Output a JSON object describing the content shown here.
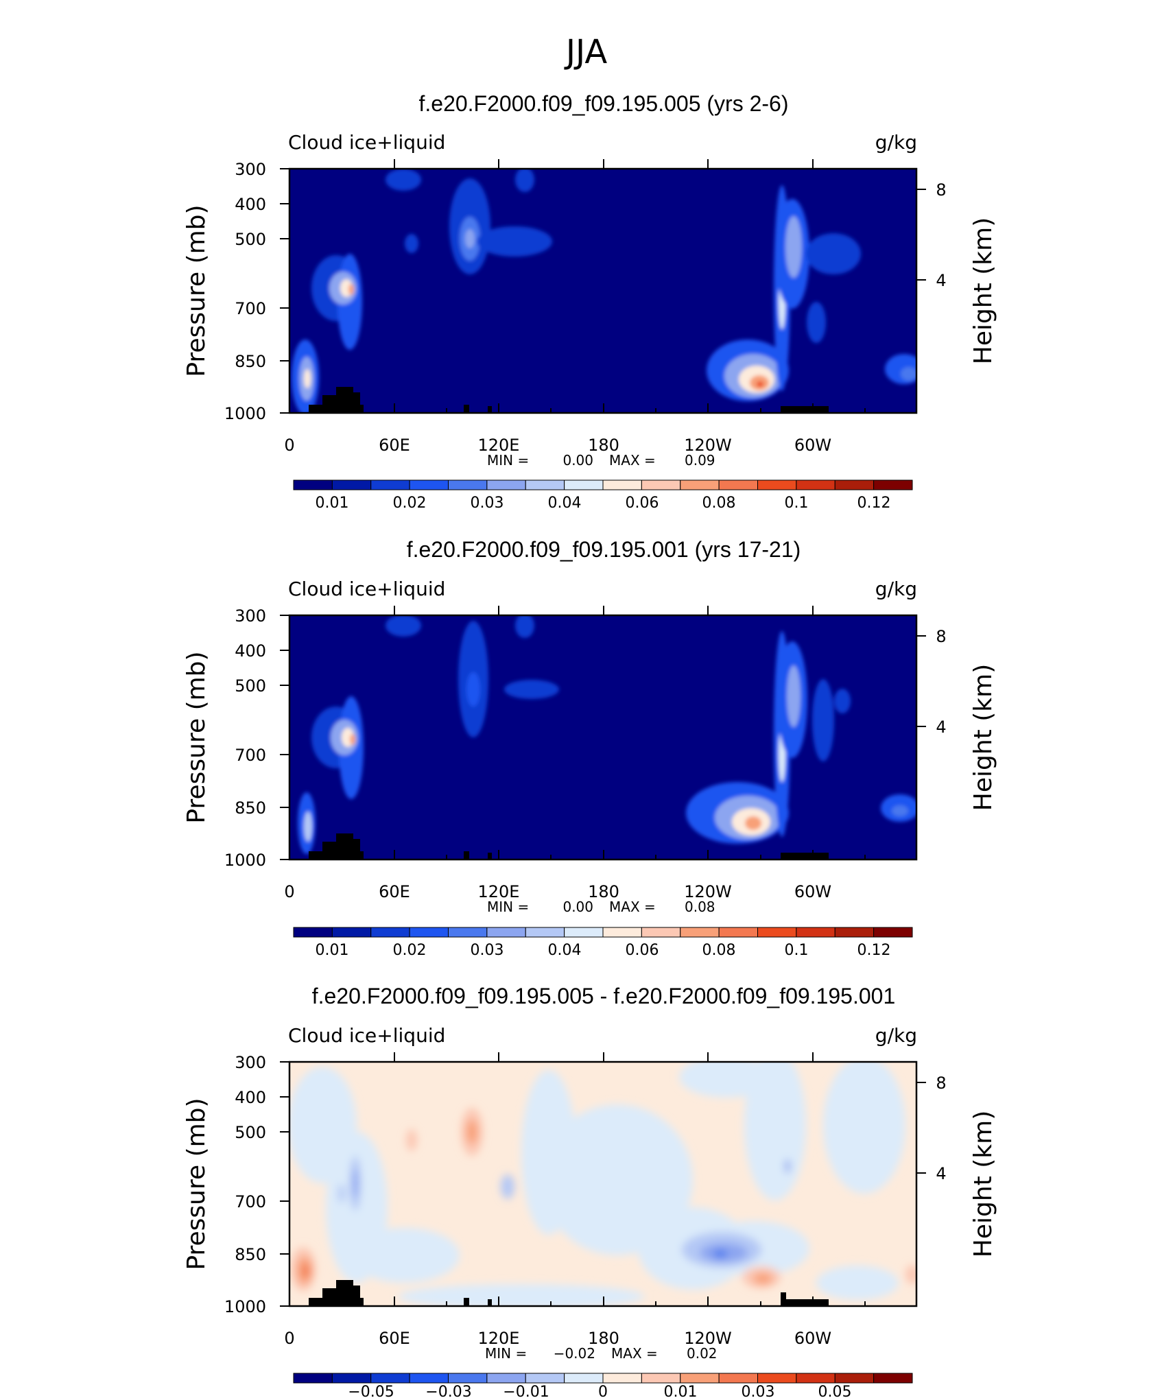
{
  "figure": {
    "title": "JJA"
  },
  "panels": [
    {
      "title": "f.e20.F2000.f09_f09.195.005 (yrs 2-6)",
      "left_label": "Cloud ice+liquid",
      "right_label": "g/kg",
      "ylabel": "Pressure (mb)",
      "ylabel_right": "Height (km)",
      "y_ticks": [
        "300",
        "400",
        "500",
        "700",
        "850",
        "1000"
      ],
      "y_right_ticks": [
        "8",
        "4"
      ],
      "x_ticks": [
        "0",
        "60E",
        "120E",
        "180",
        "120W",
        "60W"
      ],
      "stats": {
        "min_label": "MIN =",
        "min": "0.00",
        "max_label": "MAX =",
        "max": "0.09"
      },
      "colorbar_labels": [
        "0.01",
        "0.02",
        "0.03",
        "0.04",
        "0.06",
        "0.08",
        "0.1",
        "0.12"
      ]
    },
    {
      "title": "f.e20.F2000.f09_f09.195.001 (yrs 17-21)",
      "left_label": "Cloud ice+liquid",
      "right_label": "g/kg",
      "ylabel": "Pressure (mb)",
      "ylabel_right": "Height (km)",
      "y_ticks": [
        "300",
        "400",
        "500",
        "700",
        "850",
        "1000"
      ],
      "y_right_ticks": [
        "8",
        "4"
      ],
      "x_ticks": [
        "0",
        "60E",
        "120E",
        "180",
        "120W",
        "60W"
      ],
      "stats": {
        "min_label": "MIN =",
        "min": "0.00",
        "max_label": "MAX =",
        "max": "0.08"
      },
      "colorbar_labels": [
        "0.01",
        "0.02",
        "0.03",
        "0.04",
        "0.06",
        "0.08",
        "0.1",
        "0.12"
      ]
    },
    {
      "title": "f.e20.F2000.f09_f09.195.005 - f.e20.F2000.f09_f09.195.001",
      "left_label": "Cloud ice+liquid",
      "right_label": "g/kg",
      "ylabel": "Pressure (mb)",
      "ylabel_right": "Height (km)",
      "y_ticks": [
        "300",
        "400",
        "500",
        "700",
        "850",
        "1000"
      ],
      "y_right_ticks": [
        "8",
        "4"
      ],
      "x_ticks": [
        "0",
        "60E",
        "120E",
        "180",
        "120W",
        "60W"
      ],
      "stats": {
        "min_label": "MIN =",
        "min": "−0.02",
        "max_label": "MAX =",
        "max": "0.02"
      },
      "colorbar_labels": [
        "−0.05",
        "−0.03",
        "−0.01",
        "0",
        "0.01",
        "0.03",
        "0.05"
      ]
    }
  ],
  "colors": {
    "abs_scale": [
      "#000080",
      "#0019a5",
      "#0f3cd2",
      "#1e55f0",
      "#4a78ee",
      "#8ca5f0",
      "#b4c8f5",
      "#dcebfa",
      "#fdebdc",
      "#fcc8b4",
      "#f8a078",
      "#f37850",
      "#eb4b1e",
      "#d23214",
      "#aa1e0a",
      "#7d0000"
    ],
    "diff_scale": [
      "#000080",
      "#0019a5",
      "#0f3cd2",
      "#1e55f0",
      "#4a78ee",
      "#8ca5f0",
      "#b4c8f5",
      "#dcebfa",
      "#fdebdc",
      "#fcc8b4",
      "#f8a078",
      "#f37850",
      "#eb4b1e",
      "#d23214",
      "#aa1e0a",
      "#7d0000"
    ],
    "topography": "#000000"
  },
  "chart_data": [
    {
      "type": "heatmap",
      "title": "f.e20.F2000.f09_f09.195.005 (yrs 2-6)",
      "subtitle_left": "Cloud ice+liquid",
      "units": "g/kg",
      "xlabel": "",
      "ylabel": "Pressure (mb)",
      "ylabel_right": "Height (km)",
      "x_ticks": [
        "0",
        "60E",
        "120E",
        "180",
        "120W",
        "60W"
      ],
      "xlim_deg": [
        0,
        360
      ],
      "y_ticks_mb": [
        300,
        400,
        500,
        700,
        850,
        1000
      ],
      "ylim_mb": [
        300,
        1000
      ],
      "y_scale": "log-pressure",
      "contour_levels": [
        0.005,
        0.01,
        0.015,
        0.02,
        0.025,
        0.03,
        0.035,
        0.04,
        0.05,
        0.06,
        0.07,
        0.08,
        0.09,
        0.1,
        0.11,
        0.12,
        0.13
      ],
      "min": 0.0,
      "max": 0.09,
      "features": [
        {
          "lon": 10,
          "p_mb": 900,
          "value": 0.045
        },
        {
          "lon": 32,
          "p_mb": 650,
          "value": 0.06
        },
        {
          "lon": 100,
          "p_mb": 500,
          "value": 0.03
        },
        {
          "lon": 270,
          "p_mb": 900,
          "value": 0.09
        },
        {
          "lon": 288,
          "p_mb": 500,
          "value": 0.035
        },
        {
          "lon": 352,
          "p_mb": 870,
          "value": 0.02
        }
      ]
    },
    {
      "type": "heatmap",
      "title": "f.e20.F2000.f09_f09.195.001 (yrs 17-21)",
      "subtitle_left": "Cloud ice+liquid",
      "units": "g/kg",
      "xlabel": "",
      "ylabel": "Pressure (mb)",
      "ylabel_right": "Height (km)",
      "x_ticks": [
        "0",
        "60E",
        "120E",
        "180",
        "120W",
        "60W"
      ],
      "xlim_deg": [
        0,
        360
      ],
      "y_ticks_mb": [
        300,
        400,
        500,
        700,
        850,
        1000
      ],
      "ylim_mb": [
        300,
        1000
      ],
      "y_scale": "log-pressure",
      "contour_levels": [
        0.005,
        0.01,
        0.015,
        0.02,
        0.025,
        0.03,
        0.035,
        0.04,
        0.05,
        0.06,
        0.07,
        0.08,
        0.09,
        0.1,
        0.11,
        0.12,
        0.13
      ],
      "min": 0.0,
      "max": 0.08,
      "features": [
        {
          "lon": 10,
          "p_mb": 900,
          "value": 0.04
        },
        {
          "lon": 32,
          "p_mb": 650,
          "value": 0.06
        },
        {
          "lon": 100,
          "p_mb": 500,
          "value": 0.02
        },
        {
          "lon": 268,
          "p_mb": 900,
          "value": 0.08
        },
        {
          "lon": 288,
          "p_mb": 520,
          "value": 0.035
        },
        {
          "lon": 348,
          "p_mb": 870,
          "value": 0.02
        }
      ]
    },
    {
      "type": "heatmap",
      "title": "f.e20.F2000.f09_f09.195.005 - f.e20.F2000.f09_f09.195.001",
      "subtitle_left": "Cloud ice+liquid",
      "units": "g/kg",
      "xlabel": "",
      "ylabel": "Pressure (mb)",
      "ylabel_right": "Height (km)",
      "x_ticks": [
        "0",
        "60E",
        "120E",
        "180",
        "120W",
        "60W"
      ],
      "xlim_deg": [
        0,
        360
      ],
      "y_ticks_mb": [
        300,
        400,
        500,
        700,
        850,
        1000
      ],
      "ylim_mb": [
        300,
        1000
      ],
      "y_scale": "log-pressure",
      "contour_levels": [
        -0.06,
        -0.05,
        -0.04,
        -0.03,
        -0.02,
        -0.01,
        -0.005,
        0,
        0.005,
        0.01,
        0.02,
        0.03,
        0.04,
        0.05,
        0.06
      ],
      "min": -0.02,
      "max": 0.02,
      "features": [
        {
          "lon": 10,
          "p_mb": 900,
          "value": 0.015
        },
        {
          "lon": 38,
          "p_mb": 650,
          "value": -0.015
        },
        {
          "lon": 103,
          "p_mb": 520,
          "value": 0.01
        },
        {
          "lon": 248,
          "p_mb": 860,
          "value": -0.015
        },
        {
          "lon": 273,
          "p_mb": 930,
          "value": 0.015
        }
      ]
    }
  ]
}
